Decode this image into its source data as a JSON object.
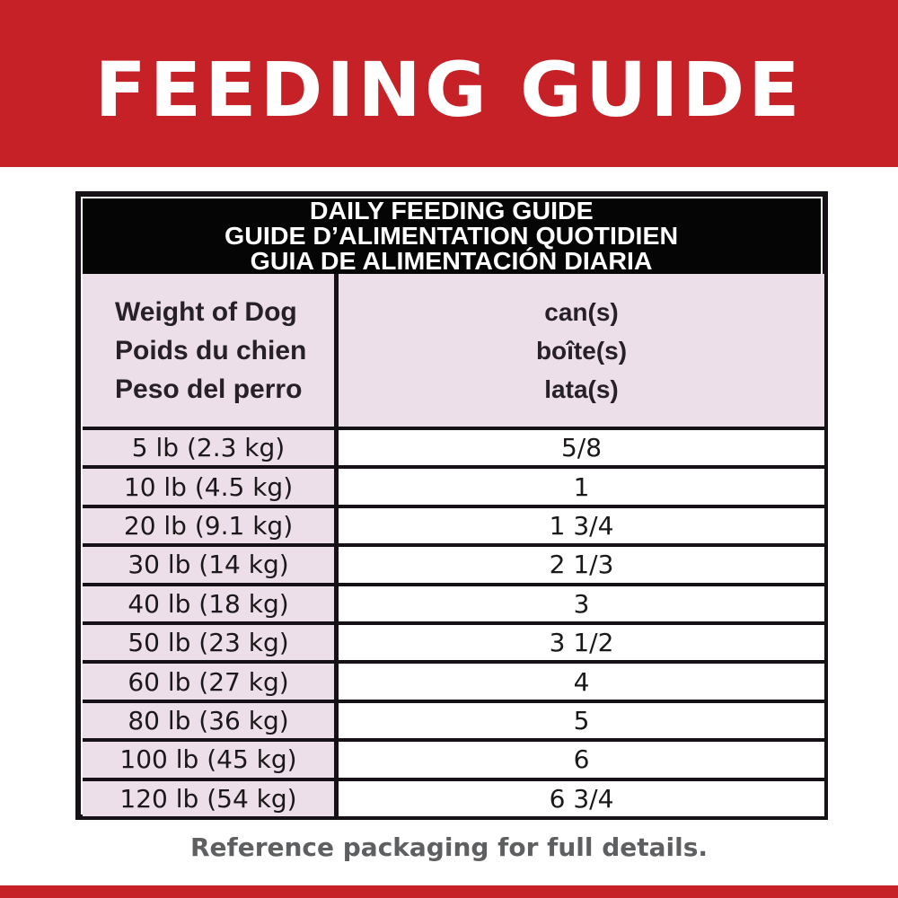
{
  "banner": {
    "title": "FEEDING GUIDE"
  },
  "table": {
    "title_lines": [
      "DAILY FEEDING GUIDE",
      "GUIDE D’ALIMENTATION QUOTIDIEN",
      "GUIA DE ALIMENTACIÓN DIARIA"
    ],
    "columns": {
      "weight": {
        "lines": [
          "Weight of Dog",
          "Poids du chien",
          "Peso del perro"
        ]
      },
      "cans": {
        "lines": [
          "can(s)",
          "boîte(s)",
          "lata(s)"
        ]
      }
    },
    "rows": [
      {
        "weight": "5 lb (2.3 kg)",
        "cans": "5/8"
      },
      {
        "weight": "10 lb (4.5 kg)",
        "cans": "1"
      },
      {
        "weight": "20 lb (9.1 kg)",
        "cans": "1 3/4"
      },
      {
        "weight": "30 lb (14 kg)",
        "cans": "2 1/3"
      },
      {
        "weight": "40 lb (18 kg)",
        "cans": "3"
      },
      {
        "weight": "50 lb (23 kg)",
        "cans": "3 1/2"
      },
      {
        "weight": "60 lb (27 kg)",
        "cans": "4"
      },
      {
        "weight": "80 lb (36 kg)",
        "cans": "5"
      },
      {
        "weight": "100 lb (45 kg)",
        "cans": "6"
      },
      {
        "weight": "120 lb (54 kg)",
        "cans": "6 3/4"
      }
    ]
  },
  "footer": {
    "note": "Reference packaging for full details."
  },
  "colors": {
    "brand-red": "#C52127",
    "table-border": "#161116",
    "header-band-bg": "#050505",
    "header-band-text": "#FFFFFF",
    "cell-pink": "#EDDFE9",
    "cell-white": "#FFFFFF",
    "weight-header-text": "#262028",
    "data-text": "#1B181B",
    "footer-text": "#5E5F61",
    "banner-text": "#FFFFFF"
  }
}
